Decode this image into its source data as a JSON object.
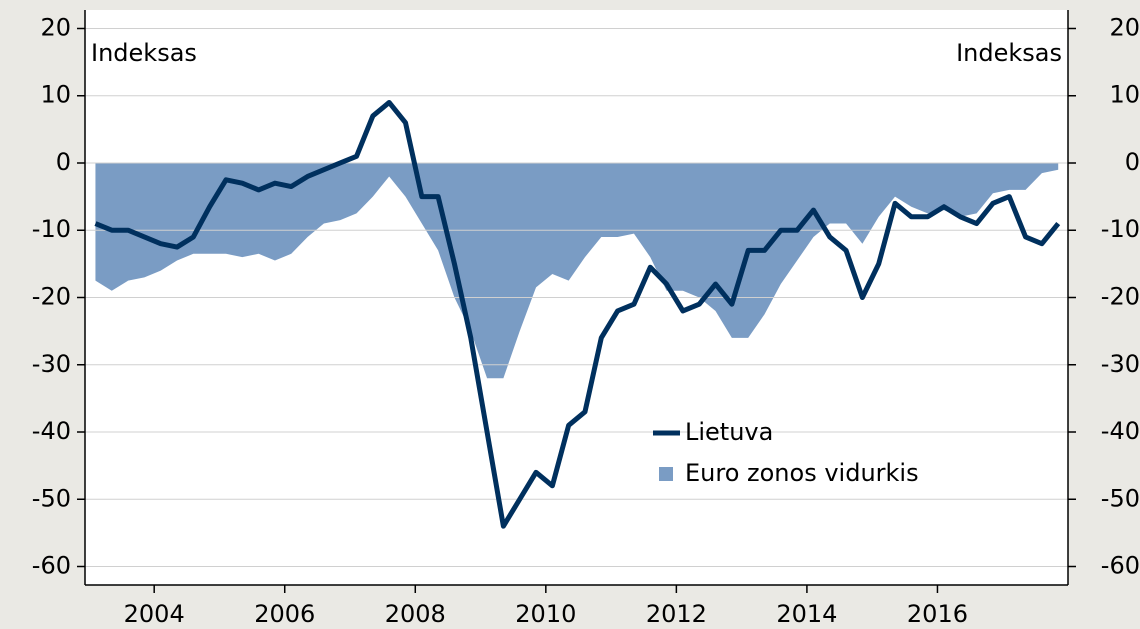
{
  "chart_data": {
    "type": "line",
    "annotations": [
      "Indeksas",
      "Indeksas"
    ],
    "x": [
      2003.1,
      2003.35,
      2003.6,
      2003.85,
      2004.1,
      2004.35,
      2004.6,
      2004.85,
      2005.1,
      2005.35,
      2005.6,
      2005.85,
      2006.1,
      2006.35,
      2006.6,
      2006.85,
      2007.1,
      2007.35,
      2007.6,
      2007.85,
      2008.1,
      2008.35,
      2008.6,
      2008.85,
      2009.1,
      2009.35,
      2009.6,
      2009.85,
      2010.1,
      2010.35,
      2010.6,
      2010.85,
      2011.1,
      2011.35,
      2011.6,
      2011.85,
      2012.1,
      2012.35,
      2012.6,
      2012.85,
      2013.1,
      2013.35,
      2013.6,
      2013.85,
      2014.1,
      2014.35,
      2014.6,
      2014.85,
      2015.1,
      2015.35,
      2015.6,
      2015.85,
      2016.1,
      2016.35,
      2016.6,
      2016.85,
      2017.1,
      2017.35,
      2017.6,
      2017.85
    ],
    "series": [
      {
        "name": "Lietuva",
        "color": "#00305e",
        "style": "line",
        "values": [
          -9,
          -10,
          -10,
          -11,
          -12,
          -12.5,
          -11,
          -6.5,
          -2.5,
          -3,
          -4,
          -3,
          -3.5,
          -2,
          -1,
          0,
          1,
          7,
          9,
          6,
          -5,
          -5,
          -15,
          -26,
          -40,
          -54,
          -50,
          -46,
          -48,
          -39,
          -37,
          -26,
          -22,
          -21,
          -15.5,
          -18,
          -22,
          -21,
          -18,
          -21,
          -13,
          -13,
          -10,
          -10,
          -7,
          -11,
          -13,
          -20,
          -15,
          -6,
          -8,
          -8,
          -6.5,
          -8,
          -9,
          -6,
          -5,
          -11,
          -12,
          -9
        ]
      },
      {
        "name": "Euro zonos vidurkis",
        "color": "#7a9cc4",
        "style": "area",
        "values": [
          -17.5,
          -19,
          -17.5,
          -17,
          -16,
          -14.5,
          -13.5,
          -13.5,
          -13.5,
          -14,
          -13.5,
          -14.5,
          -13.5,
          -11,
          -9,
          -8.5,
          -7.5,
          -5,
          -2,
          -5,
          -9,
          -13,
          -20,
          -25,
          -32,
          -32,
          -25,
          -18.5,
          -16.5,
          -17.5,
          -14,
          -11,
          -11,
          -10.5,
          -14,
          -19,
          -19,
          -20,
          -22,
          -26,
          -26,
          -22.5,
          -18,
          -14.5,
          -11,
          -9,
          -9,
          -12,
          -8,
          -5,
          -6.5,
          -7.5,
          -7,
          -8,
          -7.5,
          -4.5,
          -4,
          -4,
          -1.5,
          -1
        ]
      }
    ],
    "xlim": [
      2002.94,
      2018.0
    ],
    "xticks": [
      2004,
      2006,
      2008,
      2010,
      2012,
      2014,
      2016
    ],
    "ylim": [
      -62.75,
      22.75
    ],
    "yticks": [
      -60,
      -50,
      -40,
      -30,
      -20,
      -10,
      0,
      10,
      20
    ],
    "y2lim": [
      -62.75,
      22.75
    ],
    "y2ticks": [
      -60,
      -50,
      -40,
      -30,
      -20,
      -10,
      0,
      10,
      20
    ],
    "grid": true
  }
}
